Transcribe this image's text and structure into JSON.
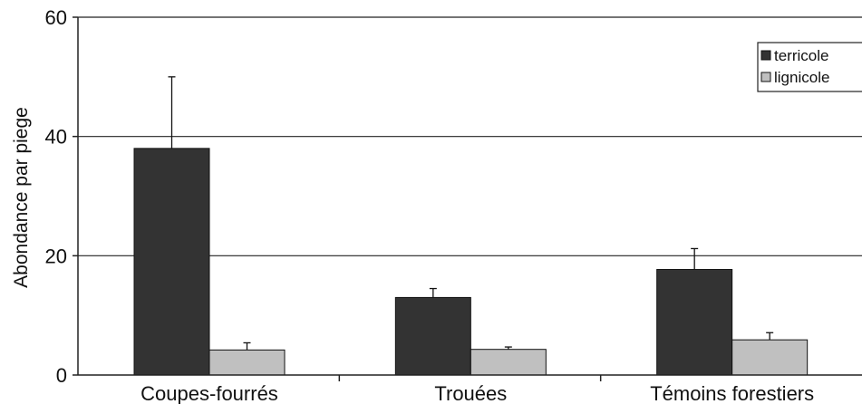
{
  "chart_data": {
    "type": "bar",
    "categories": [
      "Coupes-fourrés",
      "Trouées",
      "Témoins forestiers"
    ],
    "series": [
      {
        "name": "terricole",
        "values": [
          38,
          13,
          17.7
        ],
        "errors": [
          12,
          1.5,
          3.5
        ],
        "color": "#333333"
      },
      {
        "name": "lignicole",
        "values": [
          4.2,
          4.3,
          5.9
        ],
        "errors": [
          1.2,
          0.4,
          1.2
        ],
        "color": "#c0c0c0"
      }
    ],
    "ylabel": "Abondance par piege",
    "xlabel": "",
    "ylim": [
      0,
      60
    ],
    "yticks": [
      0,
      20,
      40,
      60
    ],
    "grid": true,
    "legend_position": "top-right"
  }
}
